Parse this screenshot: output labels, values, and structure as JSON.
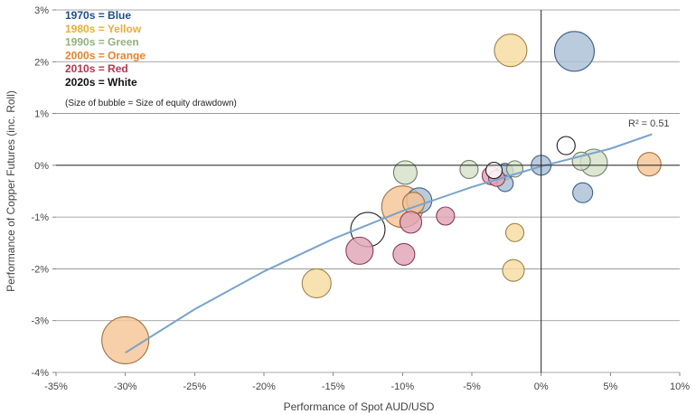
{
  "chart_data": {
    "type": "scatter",
    "xlabel": "Performance of Spot AUD/USD",
    "ylabel": "Performance of Copper Futures (inc. Roll)",
    "xlim": [
      -35,
      10
    ],
    "ylim": [
      -4,
      3
    ],
    "x_ticks": [
      -35,
      -30,
      -25,
      -20,
      -15,
      -10,
      -5,
      0,
      5,
      10
    ],
    "y_ticks": [
      -4,
      -3,
      -2,
      -1,
      0,
      1,
      2,
      3
    ],
    "x_tick_labels": [
      "-35%",
      "-30%",
      "-25%",
      "-20%",
      "-15%",
      "-10%",
      "-5%",
      "0%",
      "5%",
      "10%"
    ],
    "y_tick_labels": [
      "-4%",
      "-3%",
      "-2%",
      "-1%",
      "0%",
      "1%",
      "2%",
      "3%"
    ],
    "grid": "horizontal",
    "legend_position": "top-left",
    "legend": [
      {
        "label": "1970s = Blue",
        "color": "#1f4e8c"
      },
      {
        "label": "1980s = Yellow",
        "color": "#e8b030"
      },
      {
        "label": "1990s = Green",
        "color": "#93b07d"
      },
      {
        "label": "2000s = Orange",
        "color": "#e8822a"
      },
      {
        "label": "2010s = Red",
        "color": "#b8344f"
      },
      {
        "label": "2020s = White",
        "color": "#111111"
      }
    ],
    "note": "(Size of bubble = Size of equity drawdown)",
    "decade_colors": {
      "1970s": {
        "fill": "#a9bfd6",
        "stroke": "#3d5f88"
      },
      "1980s": {
        "fill": "#f6dca0",
        "stroke": "#9c8448"
      },
      "1990s": {
        "fill": "#d4e0c8",
        "stroke": "#6f7c66"
      },
      "2000s": {
        "fill": "#f5c596",
        "stroke": "#a0713f"
      },
      "2010s": {
        "fill": "#e0a5b7",
        "stroke": "#873c56"
      },
      "2020s": {
        "fill": "#ffffff",
        "stroke": "#222222"
      }
    },
    "series": [
      {
        "name": "1970s",
        "points": [
          {
            "x": 2.4,
            "y": 2.2,
            "size": 22
          },
          {
            "x": 0.0,
            "y": 0.0,
            "size": 11
          },
          {
            "x": 3.0,
            "y": -0.53,
            "size": 11
          },
          {
            "x": -8.8,
            "y": -0.68,
            "size": 14
          },
          {
            "x": -2.6,
            "y": -0.12,
            "size": 9
          },
          {
            "x": -2.6,
            "y": -0.35,
            "size": 9
          }
        ]
      },
      {
        "name": "1980s",
        "points": [
          {
            "x": -2.2,
            "y": 2.22,
            "size": 18
          },
          {
            "x": -1.9,
            "y": -1.3,
            "size": 10
          },
          {
            "x": -2.0,
            "y": -2.03,
            "size": 12
          },
          {
            "x": -16.2,
            "y": -2.28,
            "size": 16
          }
        ]
      },
      {
        "name": "1990s",
        "points": [
          {
            "x": -9.8,
            "y": -0.14,
            "size": 13
          },
          {
            "x": -5.2,
            "y": -0.08,
            "size": 10
          },
          {
            "x": -1.9,
            "y": -0.07,
            "size": 9
          },
          {
            "x": 2.9,
            "y": 0.08,
            "size": 10
          },
          {
            "x": 3.8,
            "y": 0.05,
            "size": 15
          }
        ]
      },
      {
        "name": "2000s",
        "points": [
          {
            "x": -30.0,
            "y": -3.38,
            "size": 26
          },
          {
            "x": -10.0,
            "y": -0.8,
            "size": 23
          },
          {
            "x": -9.2,
            "y": -0.73,
            "size": 12
          },
          {
            "x": 7.8,
            "y": 0.02,
            "size": 13
          }
        ]
      },
      {
        "name": "2010s",
        "points": [
          {
            "x": -13.1,
            "y": -1.65,
            "size": 15
          },
          {
            "x": -9.9,
            "y": -1.72,
            "size": 12
          },
          {
            "x": -9.4,
            "y": -1.1,
            "size": 12
          },
          {
            "x": -6.9,
            "y": -0.98,
            "size": 10
          },
          {
            "x": -3.6,
            "y": -0.2,
            "size": 10
          },
          {
            "x": -3.2,
            "y": -0.25,
            "size": 9
          }
        ]
      },
      {
        "name": "2020s",
        "points": [
          {
            "x": -12.5,
            "y": -1.24,
            "size": 19
          },
          {
            "x": 1.8,
            "y": 0.38,
            "size": 10
          },
          {
            "x": -3.4,
            "y": -0.1,
            "size": 9
          }
        ]
      }
    ],
    "trendline": {
      "label": "R² = 0.51",
      "points": [
        [
          -30,
          -3.62
        ],
        [
          -25,
          -2.78
        ],
        [
          -20,
          -2.05
        ],
        [
          -15,
          -1.42
        ],
        [
          -10,
          -0.88
        ],
        [
          -5,
          -0.42
        ],
        [
          0,
          -0.02
        ],
        [
          5,
          0.32
        ],
        [
          8,
          0.6
        ]
      ],
      "color": "#7aa3cc"
    }
  }
}
